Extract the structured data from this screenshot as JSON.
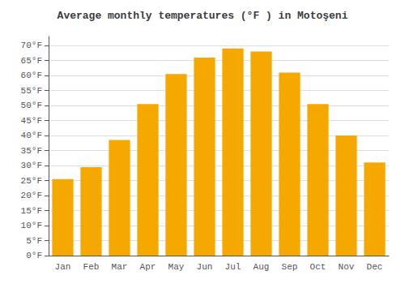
{
  "chart_data": {
    "type": "bar",
    "title": "Average monthly temperatures (°F ) in Motoşeni",
    "categories": [
      "Jan",
      "Feb",
      "Mar",
      "Apr",
      "May",
      "Jun",
      "Jul",
      "Aug",
      "Sep",
      "Oct",
      "Nov",
      "Dec"
    ],
    "values": [
      25.5,
      29.5,
      38.5,
      50.5,
      60.5,
      66.0,
      69.0,
      68.0,
      61.0,
      50.5,
      40.0,
      31.0
    ],
    "color": "#F5A800",
    "ylim": [
      0,
      73
    ],
    "yticks": [
      {
        "value": 0,
        "label": "0°F"
      },
      {
        "value": 5,
        "label": "5°F"
      },
      {
        "value": 10,
        "label": "10°F"
      },
      {
        "value": 15,
        "label": "15°F"
      },
      {
        "value": 20,
        "label": "20°F"
      },
      {
        "value": 25,
        "label": "25°F"
      },
      {
        "value": 30,
        "label": "30°F"
      },
      {
        "value": 35,
        "label": "35°F"
      },
      {
        "value": 40,
        "label": "40°F"
      },
      {
        "value": 45,
        "label": "45°F"
      },
      {
        "value": 50,
        "label": "50°F"
      },
      {
        "value": 55,
        "label": "55°F"
      },
      {
        "value": 60,
        "label": "60°F"
      },
      {
        "value": 65,
        "label": "65°F"
      },
      {
        "value": 70,
        "label": "70°F"
      }
    ],
    "grid": true
  }
}
